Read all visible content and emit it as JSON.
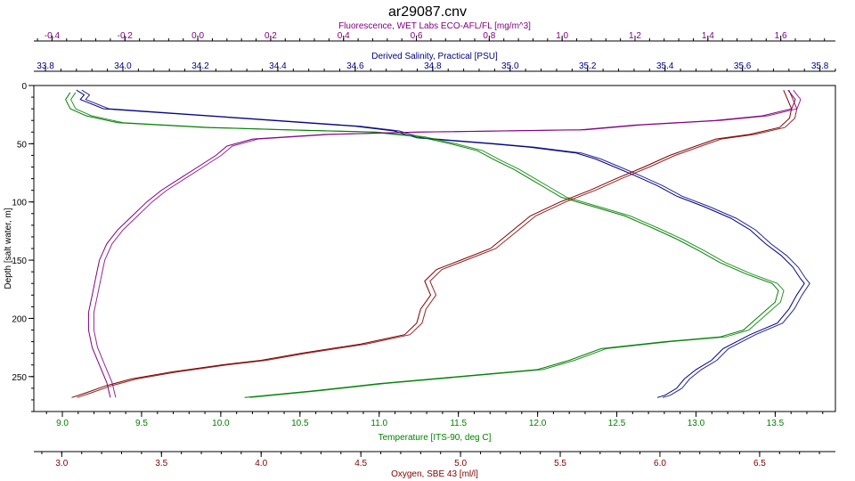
{
  "chart_data": {
    "type": "line",
    "title": "ar29087.cnv",
    "grid": false,
    "legend": "none",
    "y_axis": {
      "label": "Depth [salt water, m]",
      "range": [
        0,
        280
      ],
      "inverted": true,
      "ticks": [
        0,
        50,
        100,
        150,
        200,
        250
      ]
    },
    "x_axes": [
      {
        "id": "fluorescence",
        "position": "top-outer",
        "label": "Fluorescence, WET Labs ECO-AFL/FL [mg/m^3]",
        "color": "#800080",
        "range": [
          -0.45,
          1.75
        ],
        "ticks": [
          -0.4,
          -0.2,
          0.0,
          0.2,
          0.4,
          0.6,
          0.8,
          1.0,
          1.2,
          1.4,
          1.6
        ],
        "tick_labels": [
          "-0.4",
          "-0.2",
          "0.0",
          "0.2",
          "0.4",
          "0.6",
          "0.8",
          "1.0",
          "1.2",
          "1.4",
          "1.6"
        ]
      },
      {
        "id": "salinity",
        "position": "top-inner",
        "label": "Derived Salinity, Practical [PSU]",
        "color": "#000080",
        "range": [
          33.77,
          35.84
        ],
        "ticks": [
          33.8,
          34.0,
          34.2,
          34.4,
          34.6,
          34.8,
          35.0,
          35.2,
          35.4,
          35.6,
          35.8
        ],
        "tick_labels": [
          "33.8",
          "34.0",
          "34.2",
          "34.4",
          "34.6",
          "34.8",
          "35.0",
          "35.2",
          "35.4",
          "35.6",
          "35.8"
        ]
      },
      {
        "id": "temperature",
        "position": "bottom-inner",
        "label": "Temperature [ITS-90, deg C]",
        "color": "#008000",
        "range": [
          8.82,
          13.88
        ],
        "ticks": [
          9.0,
          9.5,
          10.0,
          10.5,
          11.0,
          11.5,
          12.0,
          12.5,
          13.0,
          13.5
        ],
        "tick_labels": [
          "9.0",
          "9.5",
          "10.0",
          "10.5",
          "11.0",
          "11.5",
          "12.0",
          "12.5",
          "13.0",
          "13.5"
        ]
      },
      {
        "id": "oxygen",
        "position": "bottom-outer",
        "label": "Oxygen, SBE 43 [ml/l]",
        "color": "#800000",
        "range": [
          2.86,
          6.88
        ],
        "ticks": [
          3.0,
          3.5,
          4.0,
          4.5,
          5.0,
          5.5,
          6.0,
          6.5
        ],
        "tick_labels": [
          "3.0",
          "3.5",
          "4.0",
          "4.5",
          "5.0",
          "5.5",
          "6.0",
          "6.5"
        ]
      }
    ],
    "series": [
      {
        "axis": "salinity",
        "color": "#000080",
        "points": [
          [
            33.88,
            4
          ],
          [
            33.9,
            8
          ],
          [
            33.89,
            12
          ],
          [
            33.95,
            20
          ],
          [
            34.3,
            28
          ],
          [
            34.6,
            35
          ],
          [
            34.7,
            39
          ],
          [
            34.76,
            45
          ],
          [
            34.95,
            50
          ],
          [
            35.05,
            53
          ],
          [
            35.17,
            58
          ],
          [
            35.22,
            63
          ],
          [
            35.27,
            70
          ],
          [
            35.32,
            77
          ],
          [
            35.38,
            86
          ],
          [
            35.43,
            95
          ],
          [
            35.5,
            104
          ],
          [
            35.57,
            114
          ],
          [
            35.62,
            124
          ],
          [
            35.66,
            136
          ],
          [
            35.7,
            146
          ],
          [
            35.73,
            156
          ],
          [
            35.75,
            166
          ],
          [
            35.76,
            170
          ],
          [
            35.74,
            180
          ],
          [
            35.72,
            192
          ],
          [
            35.69,
            204
          ],
          [
            35.62,
            214
          ],
          [
            35.55,
            226
          ],
          [
            35.52,
            236
          ],
          [
            35.48,
            244
          ],
          [
            35.45,
            252
          ],
          [
            35.43,
            260
          ],
          [
            35.4,
            266
          ],
          [
            35.38,
            268
          ]
        ]
      },
      {
        "axis": "temperature",
        "color": "#008000",
        "points": [
          [
            9.05,
            6
          ],
          [
            9.02,
            12
          ],
          [
            9.05,
            20
          ],
          [
            9.15,
            26
          ],
          [
            9.35,
            32
          ],
          [
            9.9,
            36
          ],
          [
            10.4,
            38
          ],
          [
            10.95,
            40
          ],
          [
            11.25,
            44
          ],
          [
            11.45,
            50
          ],
          [
            11.62,
            56
          ],
          [
            11.73,
            64
          ],
          [
            11.85,
            72
          ],
          [
            11.95,
            80
          ],
          [
            12.05,
            88
          ],
          [
            12.15,
            96
          ],
          [
            12.35,
            104
          ],
          [
            12.55,
            112
          ],
          [
            12.72,
            122
          ],
          [
            12.88,
            132
          ],
          [
            13.02,
            142
          ],
          [
            13.15,
            152
          ],
          [
            13.32,
            162
          ],
          [
            13.48,
            170
          ],
          [
            13.52,
            176
          ],
          [
            13.5,
            186
          ],
          [
            13.4,
            198
          ],
          [
            13.3,
            210
          ],
          [
            13.15,
            216
          ],
          [
            12.8,
            220
          ],
          [
            12.4,
            226
          ],
          [
            12.2,
            236
          ],
          [
            12.0,
            244
          ],
          [
            11.5,
            250
          ],
          [
            11.0,
            256
          ],
          [
            10.6,
            262
          ],
          [
            10.15,
            268
          ]
        ]
      },
      {
        "axis": "oxygen",
        "color": "#800000",
        "points": [
          [
            6.62,
            4
          ],
          [
            6.64,
            12
          ],
          [
            6.66,
            20
          ],
          [
            6.65,
            28
          ],
          [
            6.6,
            36
          ],
          [
            6.45,
            42
          ],
          [
            6.28,
            46
          ],
          [
            6.18,
            52
          ],
          [
            6.05,
            60
          ],
          [
            5.92,
            70
          ],
          [
            5.78,
            80
          ],
          [
            5.65,
            90
          ],
          [
            5.5,
            100
          ],
          [
            5.35,
            112
          ],
          [
            5.25,
            126
          ],
          [
            5.15,
            140
          ],
          [
            5.0,
            150
          ],
          [
            4.88,
            158
          ],
          [
            4.82,
            168
          ],
          [
            4.85,
            180
          ],
          [
            4.8,
            192
          ],
          [
            4.78,
            204
          ],
          [
            4.72,
            214
          ],
          [
            4.5,
            222
          ],
          [
            4.2,
            230
          ],
          [
            4.0,
            236
          ],
          [
            3.8,
            240
          ],
          [
            3.55,
            246
          ],
          [
            3.35,
            252
          ],
          [
            3.22,
            258
          ],
          [
            3.12,
            264
          ],
          [
            3.05,
            268
          ]
        ]
      },
      {
        "axis": "fluorescence",
        "color": "#800080",
        "points": [
          [
            1.62,
            4
          ],
          [
            1.64,
            12
          ],
          [
            1.63,
            20
          ],
          [
            1.55,
            26
          ],
          [
            1.42,
            30
          ],
          [
            1.2,
            34
          ],
          [
            1.05,
            38
          ],
          [
            0.6,
            40
          ],
          [
            0.35,
            42
          ],
          [
            0.15,
            46
          ],
          [
            0.08,
            52
          ],
          [
            0.05,
            60
          ],
          [
            0.0,
            70
          ],
          [
            -0.05,
            80
          ],
          [
            -0.1,
            90
          ],
          [
            -0.14,
            100
          ],
          [
            -0.18,
            112
          ],
          [
            -0.22,
            124
          ],
          [
            -0.25,
            136
          ],
          [
            -0.27,
            150
          ],
          [
            -0.28,
            165
          ],
          [
            -0.29,
            180
          ],
          [
            -0.3,
            195
          ],
          [
            -0.3,
            210
          ],
          [
            -0.29,
            225
          ],
          [
            -0.27,
            240
          ],
          [
            -0.25,
            255
          ],
          [
            -0.24,
            268
          ]
        ]
      }
    ]
  }
}
